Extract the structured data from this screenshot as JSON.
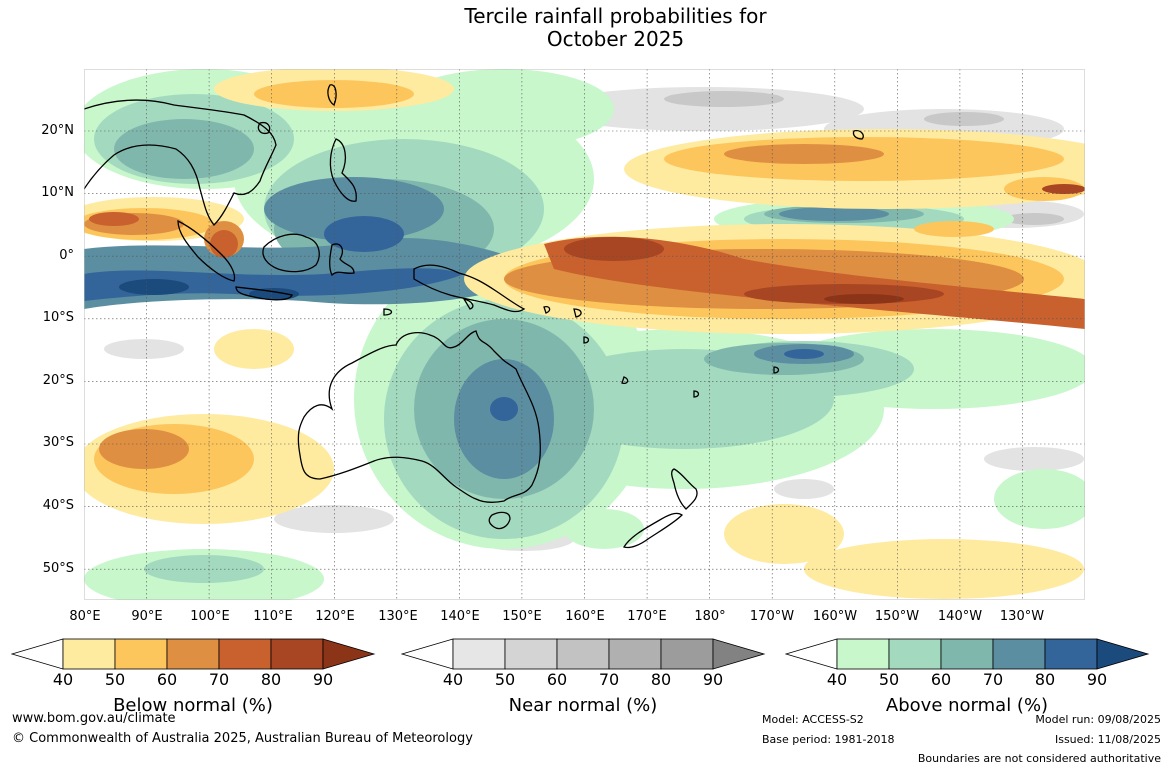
{
  "title": {
    "line1": "Tercile rainfall probabilities for",
    "line2": "October 2025"
  },
  "lat_labels": [
    "20°N",
    "10°N",
    "0°",
    "10°S",
    "20°S",
    "30°S",
    "40°S",
    "50°S"
  ],
  "lon_labels": [
    "80°E",
    "90°E",
    "100°E",
    "110°E",
    "120°E",
    "130°E",
    "140°E",
    "150°E",
    "160°E",
    "170°E",
    "180°",
    "170°W",
    "160°W",
    "150°W",
    "140°W",
    "130°W"
  ],
  "legends": {
    "below": {
      "title": "Below normal (%)",
      "ticks": [
        "40",
        "50",
        "60",
        "70",
        "80",
        "90"
      ],
      "colors": [
        "#ffffff",
        "#feeba0",
        "#fdc65c",
        "#df8f42",
        "#c9612f",
        "#a84623",
        "#8c3418"
      ]
    },
    "near": {
      "title": "Near normal (%)",
      "ticks": [
        "40",
        "50",
        "60",
        "70",
        "80",
        "90"
      ],
      "colors": [
        "#ffffff",
        "#e6e6e6",
        "#d4d4d4",
        "#c2c2c2",
        "#b0b0b0",
        "#9c9c9c",
        "#828282"
      ]
    },
    "above": {
      "title": "Above normal (%)",
      "ticks": [
        "40",
        "50",
        "60",
        "70",
        "80",
        "90"
      ],
      "colors": [
        "#ffffff",
        "#c7f7cb",
        "#a3d9bf",
        "#80b7ac",
        "#5b8ea1",
        "#33649a",
        "#1b4a7d"
      ]
    }
  },
  "footer": {
    "website": "www.bom.gov.au/climate",
    "copyright": "© Commonwealth of Australia 2025, Australian Bureau of Meteorology",
    "model": "Model: ACCESS-S2",
    "base_period": "Base period: 1981-2018",
    "model_run": "Model run: 09/08/2025",
    "issued": "Issued: 11/08/2025",
    "disclaimer": "Boundaries are not considered authoritative"
  }
}
